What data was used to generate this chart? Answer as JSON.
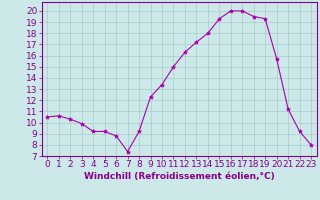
{
  "hours": [
    0,
    1,
    2,
    3,
    4,
    5,
    6,
    7,
    8,
    9,
    10,
    11,
    12,
    13,
    14,
    15,
    16,
    17,
    18,
    19,
    20,
    21,
    22,
    23
  ],
  "values": [
    10.5,
    10.6,
    10.3,
    9.9,
    9.2,
    9.2,
    8.8,
    7.4,
    9.2,
    12.3,
    13.4,
    15.0,
    16.3,
    17.2,
    18.0,
    19.3,
    20.0,
    20.0,
    19.5,
    19.3,
    15.7,
    11.2,
    9.2,
    8.0
  ],
  "line_color": "#aa00aa",
  "marker": "*",
  "marker_size": 3,
  "xlabel": "Windchill (Refroidissement éolien,°C)",
  "xlim": [
    -0.5,
    23.5
  ],
  "ylim": [
    7,
    20.8
  ],
  "yticks": [
    7,
    8,
    9,
    10,
    11,
    12,
    13,
    14,
    15,
    16,
    17,
    18,
    19,
    20
  ],
  "xticks": [
    0,
    1,
    2,
    3,
    4,
    5,
    6,
    7,
    8,
    9,
    10,
    11,
    12,
    13,
    14,
    15,
    16,
    17,
    18,
    19,
    20,
    21,
    22,
    23
  ],
  "bg_color": "#cce8e8",
  "grid_color": "#aacccc",
  "tick_color": "#880088",
  "label_color": "#880088",
  "spine_color": "#880088",
  "font_size": 6.5
}
